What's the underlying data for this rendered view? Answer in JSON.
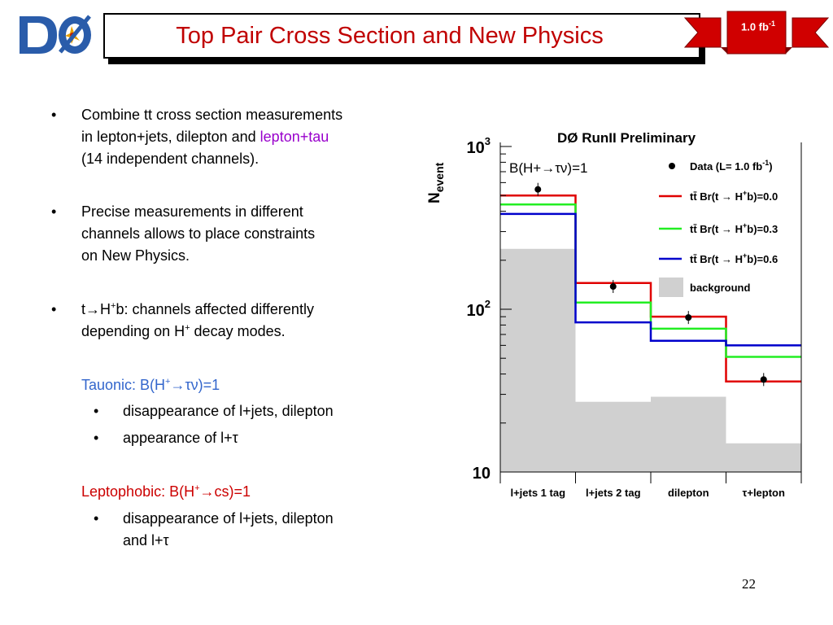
{
  "slide": {
    "title": "Top Pair Cross Section and New Physics",
    "lumi_badge": {
      "text": "1.0 fb",
      "sup": "-1"
    },
    "page_number": "22"
  },
  "bullets": {
    "b1": {
      "line1": "Combine tt cross section measurements",
      "line2_pre": "in lepton+jets, dilepton and ",
      "line2_hl": "lepton+tau",
      "line3": "(14 independent channels)."
    },
    "b2": {
      "line1": "Precise measurements in different",
      "line2": "channels allows to place constraints",
      "line3": "on New Physics."
    },
    "b3": {
      "line1_pre": "t→H",
      "line1_sup": "+",
      "line1_post": "b: channels affected differently",
      "line2_pre": "depending on H",
      "line2_sup": "+",
      "line2_post": " decay modes."
    }
  },
  "tauonic": {
    "heading_pre": "Tauonic: B(H",
    "heading_sup": "+",
    "heading_post": "→τν)=1",
    "items": [
      "disappearance of l+jets, dilepton",
      "appearance of l+τ"
    ]
  },
  "leptophobic": {
    "heading_pre": "Leptophobic: B(H",
    "heading_sup": "+",
    "heading_post": "→cs)=1",
    "items_line1": "disappearance of l+jets, dilepton",
    "items_line2": "and l+τ"
  },
  "chart_data": {
    "type": "bar",
    "title": "DØ RunII Preliminary",
    "annotation": "B(H+→τν)=1",
    "ylabel": "N",
    "ylabel_sub": "event",
    "yscale": "log",
    "ylim": [
      10,
      1000
    ],
    "y_tick_labels": [
      {
        "value": 10,
        "base": "10",
        "exp": ""
      },
      {
        "value": 100,
        "base": "10",
        "exp": "2"
      },
      {
        "value": 1000,
        "base": "10",
        "exp": "3"
      }
    ],
    "categories": [
      "l+jets 1 tag",
      "l+jets 2 tag",
      "dilepton",
      "τ+lepton"
    ],
    "background": {
      "name": "background",
      "color": "#d0d0d0",
      "values": [
        235,
        27,
        29,
        15
      ]
    },
    "series": [
      {
        "name": "tt̄ Br(t → H+b)=0.0",
        "color": "#e00000",
        "values": [
          500,
          145,
          90,
          36
        ]
      },
      {
        "name": "tt̄ Br(t → H+b)=0.3",
        "color": "#22ee22",
        "values": [
          440,
          110,
          76,
          51
        ]
      },
      {
        "name": "tt̄ Br(t → H+b)=0.6",
        "color": "#0000cc",
        "values": [
          385,
          83,
          64,
          60
        ]
      }
    ],
    "data_points": {
      "name": "Data (L= 1.0 fb-1)",
      "values": [
        545,
        138,
        89,
        37
      ]
    },
    "legend_position": "top-right",
    "legend": [
      {
        "kind": "marker",
        "base": "Data (L= 1.0 fb",
        "sup": "-1",
        "tail": ")"
      },
      {
        "kind": "line",
        "color": "#e00000",
        "pre": "tt̄ Br(t → H",
        "sup": "+",
        "post": "b)=0.0"
      },
      {
        "kind": "line",
        "color": "#22ee22",
        "pre": "tt̄ Br(t → H",
        "sup": "+",
        "post": "b)=0.3"
      },
      {
        "kind": "line",
        "color": "#0000cc",
        "pre": "tt̄ Br(t → H",
        "sup": "+",
        "post": "b)=0.6"
      },
      {
        "kind": "box",
        "color": "#d0d0d0",
        "pre": "background",
        "sup": "",
        "post": ""
      }
    ]
  }
}
